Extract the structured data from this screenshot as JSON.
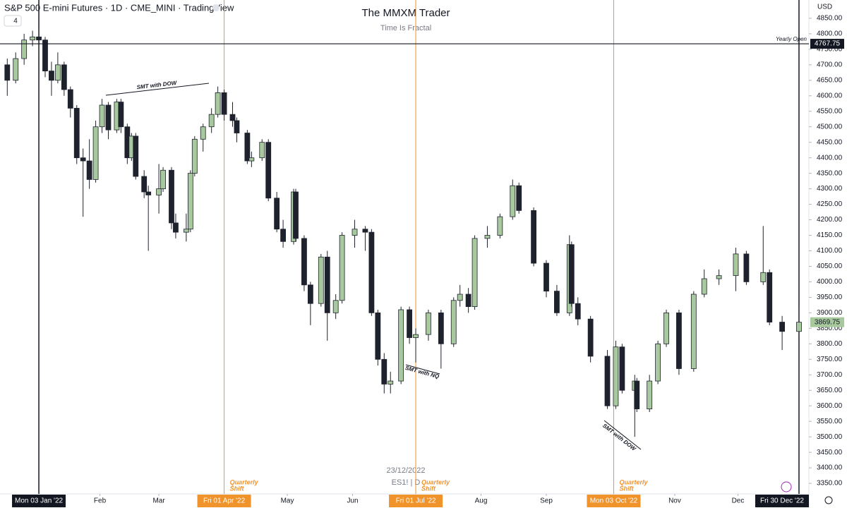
{
  "chart_data": {
    "type": "candlestick",
    "header": "S&P 500 E-mini Futures · 1D · CME_MINI · TradingView",
    "badge": "4",
    "title": "The MMXM Trader",
    "subtitle": "Time Is Fractal",
    "watermark": [
      "23/12/2022",
      "ES1! | D"
    ],
    "currency": "USD",
    "up_color": "#a8c99e",
    "down_color": "#1e222d",
    "grid": false,
    "xlim": [
      -15.45,
      368.7
    ],
    "ylim": [
      3316,
      4909
    ],
    "yticks": [
      {
        "value": 3350,
        "label": "3350.00"
      },
      {
        "value": 3400,
        "label": "3400.00"
      },
      {
        "value": 3450,
        "label": "3450.00"
      },
      {
        "value": 3500,
        "label": "3500.00"
      },
      {
        "value": 3550,
        "label": "3550.00"
      },
      {
        "value": 3600,
        "label": "3600.00"
      },
      {
        "value": 3650,
        "label": "3650.00"
      },
      {
        "value": 3700,
        "label": "3700.00"
      },
      {
        "value": 3750,
        "label": "3750.00"
      },
      {
        "value": 3800,
        "label": "3800.00"
      },
      {
        "value": 3850,
        "label": "3850.00"
      },
      {
        "value": 3900,
        "label": "3900.00"
      },
      {
        "value": 3950,
        "label": "3950.00"
      },
      {
        "value": 4000,
        "label": "4000.00"
      },
      {
        "value": 4050,
        "label": "4050.00"
      },
      {
        "value": 4100,
        "label": "4100.00"
      },
      {
        "value": 4150,
        "label": "4150.00"
      },
      {
        "value": 4200,
        "label": "4200.00"
      },
      {
        "value": 4250,
        "label": "4250.00"
      },
      {
        "value": 4300,
        "label": "4300.00"
      },
      {
        "value": 4350,
        "label": "4350.00"
      },
      {
        "value": 4400,
        "label": "4400.00"
      },
      {
        "value": 4450,
        "label": "4450.00"
      },
      {
        "value": 4500,
        "label": "4500.00"
      },
      {
        "value": 4550,
        "label": "4550.00"
      },
      {
        "value": 4600,
        "label": "4600.00"
      },
      {
        "value": 4650,
        "label": "4650.00"
      },
      {
        "value": 4700,
        "label": "4700.00"
      },
      {
        "value": 4750,
        "label": "4750.00"
      },
      {
        "value": 4800,
        "label": "4800.00"
      },
      {
        "value": 4850,
        "label": "4850.00"
      }
    ],
    "xticks": [
      {
        "value": 32,
        "label": "Feb"
      },
      {
        "value": 60,
        "label": "Mar"
      },
      {
        "value": 121,
        "label": "May"
      },
      {
        "value": 152,
        "label": "Jun"
      },
      {
        "value": 213,
        "label": "Aug"
      },
      {
        "value": 244,
        "label": "Sep"
      },
      {
        "value": 305,
        "label": "Nov"
      },
      {
        "value": 335,
        "label": "Dec"
      }
    ],
    "markers": [
      {
        "value": 3,
        "label": "Mon 03 Jan '22",
        "color": "#131722"
      },
      {
        "value": 91,
        "label": "Fri 01 Apr '22",
        "color": "#f0932b",
        "note": [
          "Quarterly",
          "Shift"
        ]
      },
      {
        "value": 182,
        "label": "Fri 01 Jul '22",
        "color": "#f0932b",
        "note": [
          "Quarterly",
          "Shift"
        ]
      },
      {
        "value": 276,
        "label": "Mon 03 Oct '22",
        "color": "#f0932b",
        "note": [
          "Quarterly",
          "Shift"
        ]
      },
      {
        "value": 364,
        "label": "Fri 30 Dec '22",
        "color": "#131722"
      }
    ],
    "levels": [
      {
        "value": 4767.75,
        "label": "Yearly Open"
      }
    ],
    "annotations": [
      "SMT with DOW",
      "SMT with NQ",
      "SMT with DOW"
    ],
    "x": [
      -12,
      -8,
      -4,
      0,
      3,
      6,
      9,
      12,
      15,
      18,
      21,
      24,
      27,
      30,
      33,
      36,
      40,
      42,
      45,
      47,
      49,
      53,
      55,
      60,
      62,
      66,
      68,
      73,
      75,
      77,
      81,
      85,
      88,
      91,
      95,
      97,
      102,
      104,
      109,
      112,
      116,
      119,
      124,
      125,
      129,
      132,
      137,
      140,
      144,
      147,
      153,
      158,
      161,
      164,
      167,
      170,
      175,
      179,
      182,
      188,
      194,
      200,
      203,
      207,
      210,
      216,
      222,
      228,
      231,
      238,
      244,
      249,
      255,
      256,
      259,
      265,
      273,
      277,
      280,
      286,
      287,
      293,
      297,
      301,
      307,
      314,
      319,
      326,
      334,
      339,
      347,
      350,
      356,
      364
    ],
    "open": [
      4700,
      4650,
      4720,
      4780,
      4790,
      4780,
      4680,
      4650,
      4700,
      4620,
      4560,
      4400,
      4390,
      4330,
      4500,
      4570,
      4490,
      4580,
      4500,
      4400,
      4470,
      4340,
      4290,
      4280,
      4300,
      4360,
      4190,
      4160,
      4170,
      4350,
      4460,
      4500,
      4540,
      4610,
      4540,
      4520,
      4480,
      4390,
      4400,
      4450,
      4270,
      4170,
      4130,
      4290,
      4140,
      3990,
      3930,
      4080,
      3900,
      3940,
      4150,
      4170,
      4160,
      3900,
      3750,
      3670,
      3680,
      3910,
      3820,
      3830,
      3900,
      3800,
      3940,
      3960,
      3920,
      4140,
      4150,
      4210,
      4310,
      4230,
      4060,
      3970,
      3900,
      4120,
      3930,
      3880,
      3760,
      3600,
      3790,
      3650,
      3680,
      3590,
      3680,
      3800,
      3900,
      3720,
      3960,
      4010,
      4020,
      4090,
      4000,
      4030,
      3870,
      3840
    ],
    "high": [
      4720,
      4740,
      4800,
      4810,
      4818,
      4790,
      4710,
      4740,
      4710,
      4630,
      4570,
      4430,
      4460,
      4520,
      4590,
      4580,
      4590,
      4590,
      4510,
      4480,
      4480,
      4360,
      4310,
      4380,
      4370,
      4370,
      4220,
      4220,
      4360,
      4470,
      4510,
      4560,
      4630,
      4620,
      4580,
      4530,
      4490,
      4420,
      4460,
      4460,
      4290,
      4200,
      4300,
      4300,
      4150,
      4000,
      4090,
      4100,
      3960,
      4160,
      4200,
      4180,
      4170,
      3910,
      3770,
      3710,
      3920,
      3920,
      3850,
      3910,
      3910,
      3950,
      3990,
      3980,
      4150,
      4180,
      4220,
      4330,
      4320,
      4240,
      4070,
      3990,
      4150,
      4130,
      3950,
      3890,
      3780,
      3810,
      3800,
      3700,
      3690,
      3700,
      3810,
      3910,
      3910,
      3970,
      4040,
      4040,
      4110,
      4100,
      4180,
      4040,
      3890,
      3920
    ],
    "low": [
      4600,
      4640,
      4700,
      4760,
      4740,
      4660,
      4600,
      4640,
      4600,
      4530,
      4380,
      4210,
      4300,
      4320,
      4480,
      4460,
      4480,
      4480,
      4380,
      4390,
      4330,
      4270,
      4100,
      4220,
      4290,
      4170,
      4140,
      4130,
      4160,
      4340,
      4420,
      4480,
      4530,
      4520,
      4500,
      4450,
      4380,
      4370,
      4390,
      4260,
      4160,
      4110,
      4120,
      4130,
      3970,
      3860,
      3920,
      3810,
      3880,
      3930,
      4110,
      4100,
      3890,
      3730,
      3640,
      3640,
      3670,
      3800,
      3740,
      3810,
      3720,
      3790,
      3920,
      3900,
      3910,
      4110,
      4140,
      4200,
      4220,
      4050,
      3950,
      3890,
      3890,
      3920,
      3860,
      3740,
      3590,
      3590,
      3640,
      3500,
      3580,
      3580,
      3670,
      3790,
      3700,
      3710,
      3950,
      3990,
      3970,
      3990,
      3990,
      3860,
      3780,
      3830
    ],
    "close": [
      4650,
      4720,
      4780,
      4790,
      4780,
      4680,
      4650,
      4700,
      4620,
      4560,
      4400,
      4390,
      4330,
      4500,
      4570,
      4490,
      4580,
      4500,
      4400,
      4470,
      4340,
      4290,
      4280,
      4300,
      4360,
      4190,
      4160,
      4170,
      4350,
      4460,
      4500,
      4540,
      4610,
      4540,
      4520,
      4480,
      4390,
      4400,
      4450,
      4270,
      4170,
      4130,
      4290,
      4140,
      3990,
      3930,
      4080,
      3900,
      3940,
      4150,
      4170,
      4160,
      3900,
      3750,
      3670,
      3680,
      3910,
      3820,
      3830,
      3900,
      3800,
      3940,
      3960,
      3920,
      4140,
      4150,
      4210,
      4310,
      4230,
      4060,
      3970,
      3900,
      4120,
      3930,
      3880,
      3760,
      3600,
      3790,
      3650,
      3680,
      3590,
      3680,
      3800,
      3900,
      3720,
      3960,
      4010,
      4020,
      4090,
      4000,
      4030,
      3870,
      3840,
      3869.75
    ]
  }
}
